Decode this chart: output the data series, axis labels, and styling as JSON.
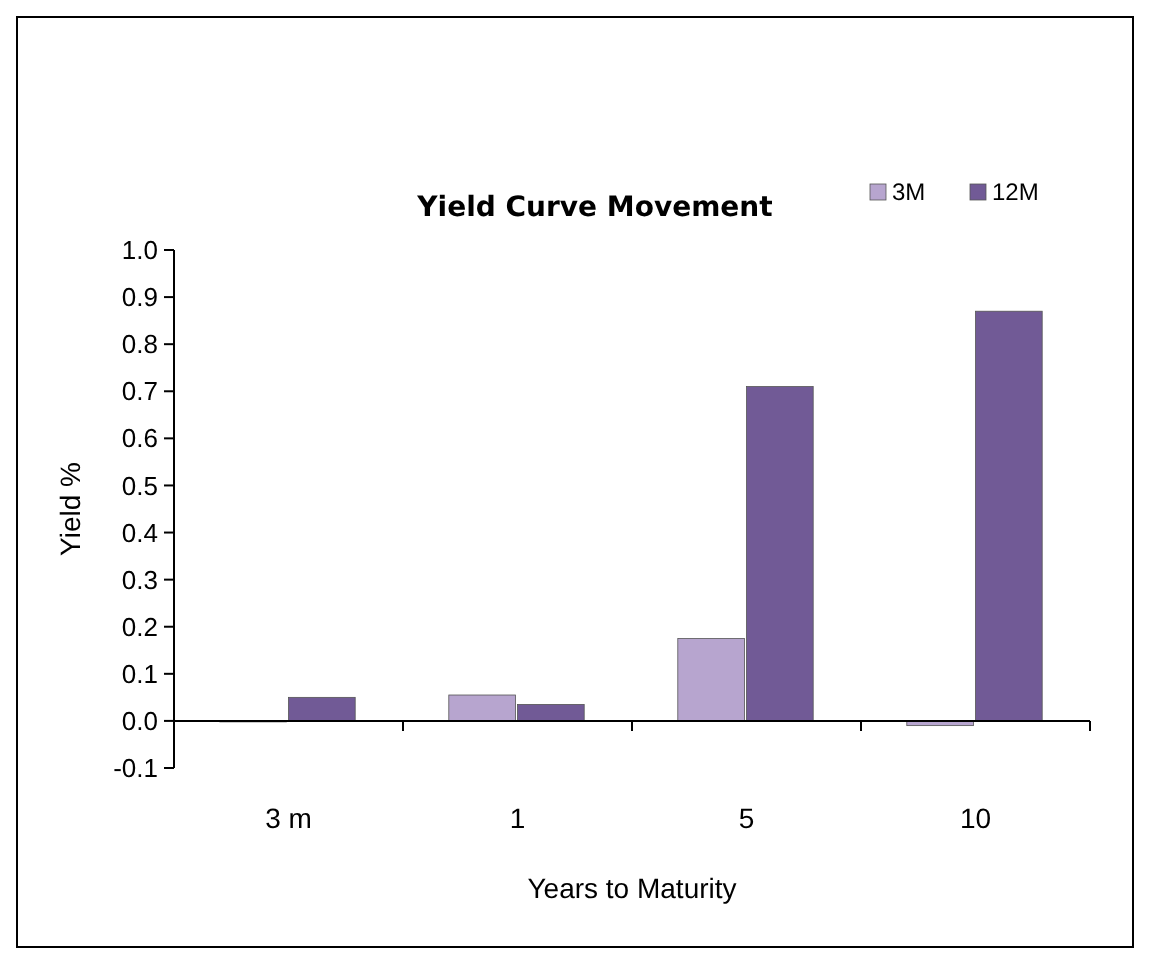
{
  "chart_data": {
    "type": "bar",
    "title": "Yield Curve Movement",
    "xlabel": "Years to Maturity",
    "ylabel": "Yield %",
    "categories": [
      "3 m",
      "1",
      "5",
      "10"
    ],
    "series": [
      {
        "name": "3M",
        "color": "#b7a5cf",
        "values": [
          0,
          0.055,
          0.175,
          -0.01
        ]
      },
      {
        "name": "12M",
        "color": "#715a96",
        "values": [
          0.05,
          0.035,
          0.71,
          0.87
        ]
      }
    ],
    "ylim": [
      -0.1,
      1.0
    ],
    "yticks": [
      {
        "value": -0.1,
        "label": "-0.1"
      },
      {
        "value": 0,
        "label": "0.0"
      },
      {
        "value": 0.1,
        "label": "0.1"
      },
      {
        "value": 0.2,
        "label": "0.2"
      },
      {
        "value": 0.3,
        "label": "0.3"
      },
      {
        "value": 0.4,
        "label": "0.4"
      },
      {
        "value": 0.5,
        "label": "0.5"
      },
      {
        "value": 0.6,
        "label": "0.6"
      },
      {
        "value": 0.7,
        "label": "0.7"
      },
      {
        "value": 0.8,
        "label": "0.8"
      },
      {
        "value": 0.9,
        "label": "0.9"
      },
      {
        "value": 1.0,
        "label": "1.0"
      }
    ],
    "legend": "top right"
  }
}
